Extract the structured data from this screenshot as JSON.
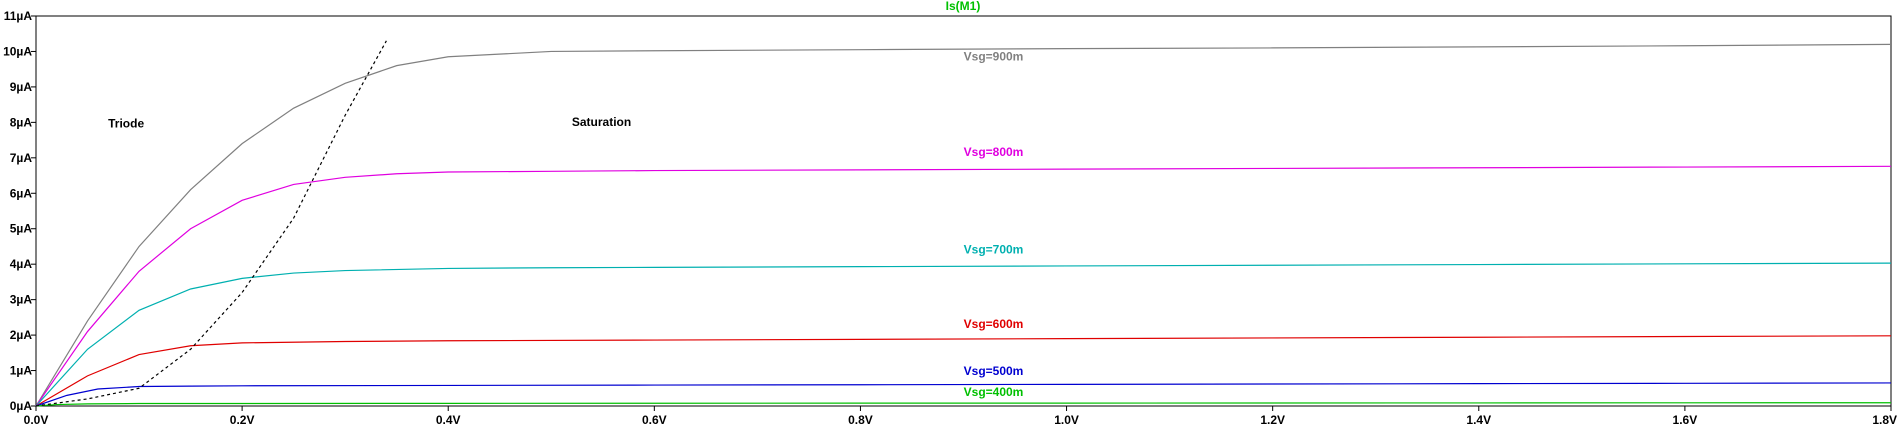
{
  "chart_data": {
    "type": "line",
    "title": "Is(M1)",
    "title_color": "#00c000",
    "xlabel": "",
    "ylabel": "",
    "xlim": [
      0.0,
      1.8
    ],
    "ylim": [
      0,
      11
    ],
    "x_ticks": [
      {
        "value": 0.0,
        "label": "0.0V"
      },
      {
        "value": 0.2,
        "label": "0.2V"
      },
      {
        "value": 0.4,
        "label": "0.4V"
      },
      {
        "value": 0.6,
        "label": "0.6V"
      },
      {
        "value": 0.8,
        "label": "0.8V"
      },
      {
        "value": 1.0,
        "label": "1.0V"
      },
      {
        "value": 1.2,
        "label": "1.2V"
      },
      {
        "value": 1.4,
        "label": "1.4V"
      },
      {
        "value": 1.6,
        "label": "1.6V"
      },
      {
        "value": 1.8,
        "label": "1.8V"
      }
    ],
    "y_ticks": [
      {
        "value": 0,
        "label": "0µA"
      },
      {
        "value": 1,
        "label": "1µA"
      },
      {
        "value": 2,
        "label": "2µA"
      },
      {
        "value": 3,
        "label": "3µA"
      },
      {
        "value": 4,
        "label": "4µA"
      },
      {
        "value": 5,
        "label": "5µA"
      },
      {
        "value": 6,
        "label": "6µA"
      },
      {
        "value": 7,
        "label": "7µA"
      },
      {
        "value": 8,
        "label": "8µA"
      },
      {
        "value": 9,
        "label": "9µA"
      },
      {
        "value": 10,
        "label": "10µA"
      },
      {
        "value": 11,
        "label": "11µA"
      }
    ],
    "grid": false,
    "series": [
      {
        "name": "Vsg=900m",
        "color": "#808080",
        "label_x": 0.9,
        "label_y": 9.75,
        "x": [
          0,
          0.05,
          0.1,
          0.15,
          0.2,
          0.25,
          0.3,
          0.35,
          0.4,
          0.5,
          0.6,
          0.8,
          1.0,
          1.2,
          1.4,
          1.6,
          1.8
        ],
        "y": [
          0,
          2.4,
          4.5,
          6.1,
          7.4,
          8.4,
          9.1,
          9.6,
          9.85,
          10.0,
          10.02,
          10.05,
          10.08,
          10.1,
          10.13,
          10.16,
          10.2
        ]
      },
      {
        "name": "Vsg=800m",
        "color": "#e000e0",
        "label_x": 0.9,
        "label_y": 7.05,
        "x": [
          0,
          0.05,
          0.1,
          0.15,
          0.2,
          0.25,
          0.3,
          0.35,
          0.4,
          0.5,
          0.6,
          0.8,
          1.0,
          1.2,
          1.4,
          1.6,
          1.8
        ],
        "y": [
          0,
          2.1,
          3.8,
          5.0,
          5.8,
          6.25,
          6.45,
          6.55,
          6.6,
          6.62,
          6.64,
          6.66,
          6.68,
          6.7,
          6.72,
          6.74,
          6.76
        ]
      },
      {
        "name": "Vsg=700m",
        "color": "#00b0b0",
        "label_x": 0.9,
        "label_y": 4.3,
        "x": [
          0,
          0.05,
          0.1,
          0.15,
          0.2,
          0.25,
          0.3,
          0.4,
          0.5,
          0.6,
          0.8,
          1.0,
          1.2,
          1.4,
          1.6,
          1.8
        ],
        "y": [
          0,
          1.6,
          2.7,
          3.3,
          3.6,
          3.75,
          3.82,
          3.88,
          3.9,
          3.91,
          3.93,
          3.95,
          3.97,
          3.99,
          4.01,
          4.03
        ]
      },
      {
        "name": "Vsg=600m",
        "color": "#e00000",
        "label_x": 0.9,
        "label_y": 2.2,
        "x": [
          0,
          0.05,
          0.1,
          0.15,
          0.2,
          0.3,
          0.4,
          0.6,
          0.8,
          1.0,
          1.2,
          1.4,
          1.6,
          1.8
        ],
        "y": [
          0,
          0.85,
          1.45,
          1.7,
          1.78,
          1.82,
          1.84,
          1.86,
          1.88,
          1.9,
          1.92,
          1.94,
          1.96,
          1.98
        ]
      },
      {
        "name": "Vsg=500m",
        "color": "#0000d0",
        "label_x": 0.9,
        "label_y": 0.88,
        "x": [
          0,
          0.03,
          0.06,
          0.1,
          0.15,
          0.2,
          0.4,
          0.6,
          0.8,
          1.0,
          1.2,
          1.4,
          1.6,
          1.8
        ],
        "y": [
          0,
          0.3,
          0.48,
          0.55,
          0.56,
          0.57,
          0.58,
          0.59,
          0.6,
          0.61,
          0.62,
          0.63,
          0.64,
          0.65
        ]
      },
      {
        "name": "Vsg=400m",
        "color": "#00c000",
        "label_x": 0.9,
        "label_y": 0.28,
        "x": [
          0,
          0.02,
          0.05,
          0.1,
          0.2,
          0.4,
          0.6,
          0.8,
          1.0,
          1.2,
          1.4,
          1.6,
          1.8
        ],
        "y": [
          0,
          0.04,
          0.06,
          0.07,
          0.07,
          0.075,
          0.078,
          0.08,
          0.082,
          0.085,
          0.087,
          0.09,
          0.092
        ]
      }
    ],
    "boundary": {
      "color": "#000000",
      "style": "dashed",
      "x": [
        0.0,
        0.05,
        0.1,
        0.15,
        0.2,
        0.25,
        0.3,
        0.34
      ],
      "y": [
        0.0,
        0.2,
        0.5,
        1.6,
        3.2,
        5.3,
        8.2,
        10.3
      ]
    },
    "annotations": [
      {
        "text": "Triode",
        "x": 0.07,
        "y": 7.85
      },
      {
        "text": "Saturation",
        "x": 0.52,
        "y": 7.9
      }
    ]
  }
}
